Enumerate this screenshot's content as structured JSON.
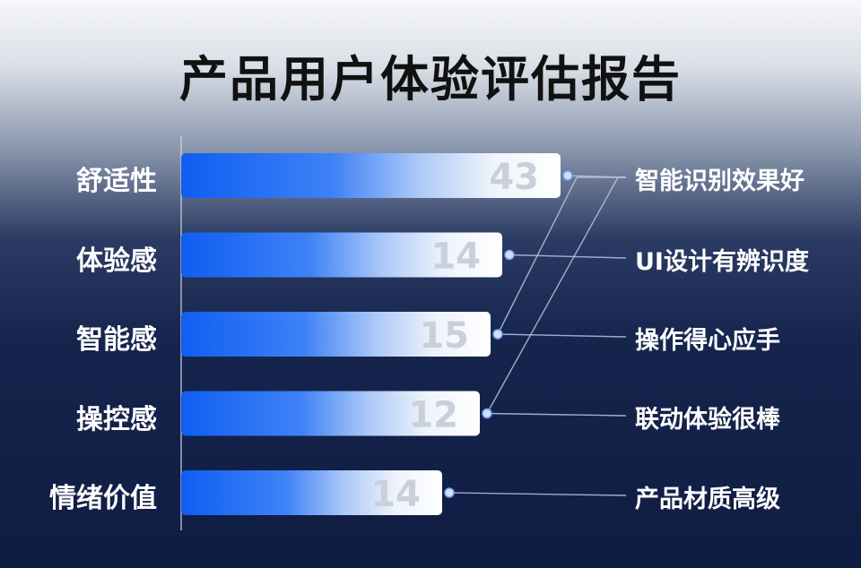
{
  "title": "产品用户体验评估报告",
  "chart_data": {
    "type": "bar",
    "orientation": "horizontal",
    "categories": [
      "舒适性",
      "体验感",
      "智能感",
      "操控感",
      "情绪价值"
    ],
    "values": [
      43,
      14,
      15,
      12,
      14
    ],
    "callouts": [
      "智能识别效果好",
      "UI设计有辨识度",
      "操作得心应手",
      "联动体验很棒",
      "产品材质高级"
    ],
    "callout_links": [
      [
        0,
        0
      ],
      [
        1,
        1
      ],
      [
        2,
        2
      ],
      [
        3,
        3
      ],
      [
        4,
        4
      ],
      [
        2,
        0
      ],
      [
        3,
        0
      ]
    ]
  },
  "colors": {
    "bar_dark": "#1262f0",
    "bar_mid": "#7aa8f5",
    "bar_light": "#eef3fb",
    "value_text": "#c9d0da",
    "connector": "#b8c6dd",
    "dot": "#cfe0ff"
  }
}
